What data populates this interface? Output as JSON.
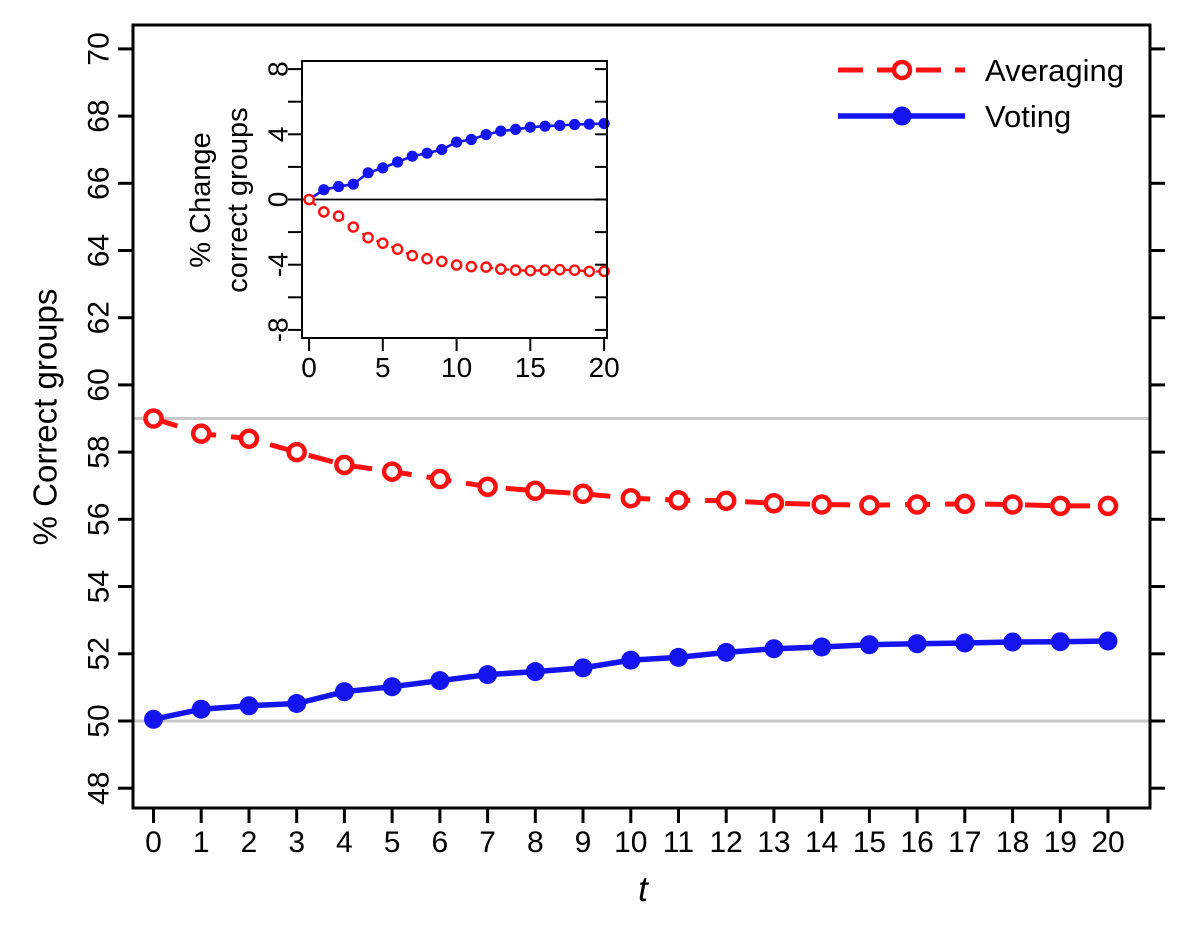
{
  "figure": {
    "background": "#ffffff",
    "colors": {
      "averaging": "#ff1010",
      "voting": "#1414ee",
      "reference_line": "#c8c8c8",
      "axis": "#000000",
      "marker_fill_open": "#ffffff"
    }
  },
  "legend": {
    "position": "top-right",
    "items": [
      {
        "label": "Averaging",
        "line": "dashed",
        "marker": "open-circle",
        "color_key": "averaging"
      },
      {
        "label": "Voting",
        "line": "solid",
        "marker": "filled-circle",
        "color_key": "voting"
      }
    ]
  },
  "chart_data": [
    {
      "id": "main",
      "type": "line",
      "title": "",
      "xlabel": "t",
      "ylabel": "% Correct groups",
      "xlim": [
        -0.43,
        20.88
      ],
      "ylim": [
        47.41,
        70.71
      ],
      "xticks": [
        0,
        1,
        2,
        3,
        4,
        5,
        6,
        7,
        8,
        9,
        10,
        11,
        12,
        13,
        14,
        15,
        16,
        17,
        18,
        19,
        20
      ],
      "yticks": [
        48,
        50,
        52,
        54,
        56,
        58,
        60,
        62,
        64,
        66,
        68,
        70
      ],
      "grid": false,
      "reference_lines_y": [
        59,
        50
      ],
      "x": [
        0,
        1,
        2,
        3,
        4,
        5,
        6,
        7,
        8,
        9,
        10,
        11,
        12,
        13,
        14,
        15,
        16,
        17,
        18,
        19,
        20
      ],
      "series": [
        {
          "name": "Averaging",
          "color_key": "averaging",
          "line": "dashed",
          "marker": "open-circle",
          "values": [
            59.0,
            58.55,
            58.4,
            58.0,
            57.62,
            57.42,
            57.2,
            56.97,
            56.85,
            56.76,
            56.63,
            56.57,
            56.55,
            56.48,
            56.44,
            56.42,
            56.44,
            56.46,
            56.44,
            56.4,
            56.4
          ]
        },
        {
          "name": "Voting",
          "color_key": "voting",
          "line": "solid",
          "marker": "filled-circle",
          "values": [
            50.05,
            50.35,
            50.45,
            50.52,
            50.87,
            51.02,
            51.2,
            51.38,
            51.47,
            51.58,
            51.81,
            51.89,
            52.04,
            52.15,
            52.2,
            52.27,
            52.3,
            52.32,
            52.35,
            52.36,
            52.38
          ]
        }
      ]
    },
    {
      "id": "inset",
      "type": "line",
      "title": "",
      "xlabel": "",
      "ylabel_lines": [
        "% Change",
        "correct groups"
      ],
      "xlim": [
        -0.48,
        20.2
      ],
      "ylim": [
        -8.5,
        8.5
      ],
      "xticks": [
        0,
        5,
        10,
        15,
        20
      ],
      "yticks_all": [
        -8,
        -6,
        -4,
        -2,
        0,
        2,
        4,
        6,
        8
      ],
      "yticks_labeled": [
        -8,
        -4,
        0,
        4,
        8
      ],
      "grid": false,
      "reference_lines_y": [
        0
      ],
      "x": [
        0,
        1,
        2,
        3,
        4,
        5,
        6,
        7,
        8,
        9,
        10,
        11,
        12,
        13,
        14,
        15,
        16,
        17,
        18,
        19,
        20
      ],
      "series": [
        {
          "name": "Averaging",
          "color_key": "averaging",
          "line": "dashed",
          "marker": "open-circle",
          "values": [
            0,
            -0.76,
            -1.02,
            -1.69,
            -2.34,
            -2.68,
            -3.05,
            -3.44,
            -3.64,
            -3.8,
            -4.02,
            -4.12,
            -4.15,
            -4.27,
            -4.34,
            -4.37,
            -4.34,
            -4.31,
            -4.34,
            -4.41,
            -4.41
          ]
        },
        {
          "name": "Voting",
          "color_key": "voting",
          "line": "solid",
          "marker": "filled-circle",
          "values": [
            0,
            0.6,
            0.8,
            0.94,
            1.64,
            1.94,
            2.3,
            2.66,
            2.84,
            3.06,
            3.52,
            3.68,
            3.98,
            4.2,
            4.3,
            4.44,
            4.5,
            4.54,
            4.6,
            4.62,
            4.66
          ]
        }
      ]
    }
  ]
}
